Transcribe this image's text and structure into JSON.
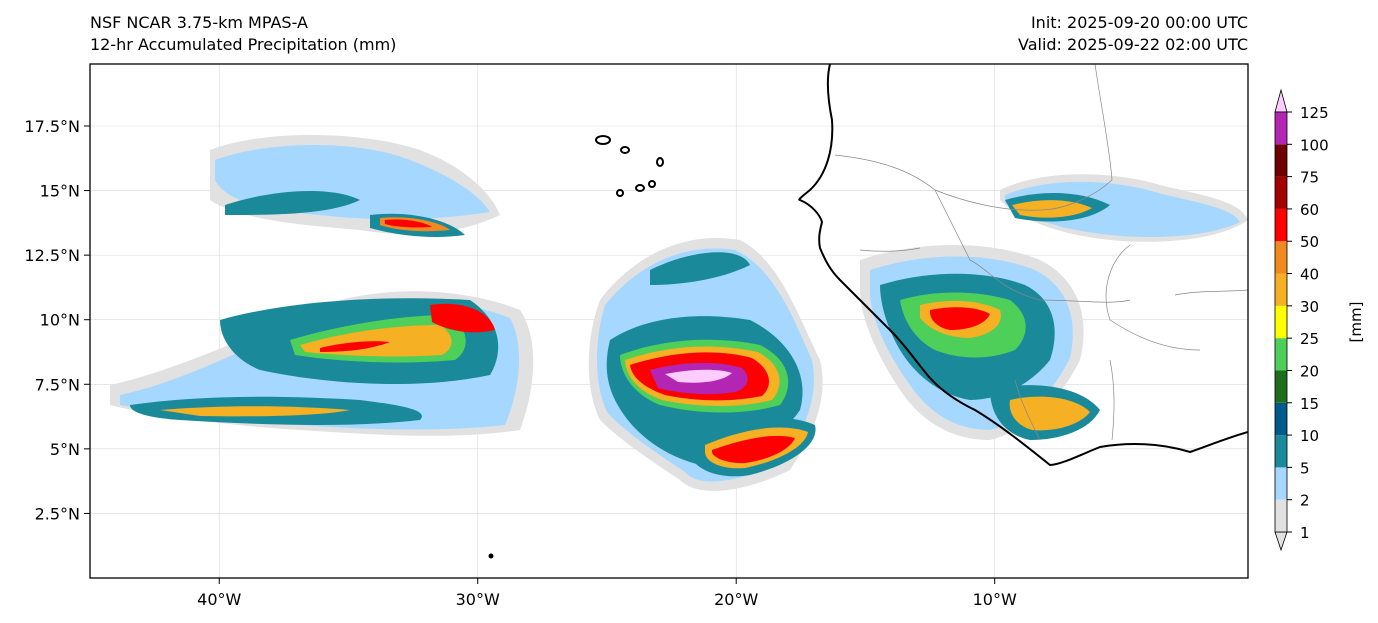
{
  "title": {
    "model": "NSF NCAR 3.75-km MPAS-A",
    "field": "12-hr Accumulated Precipitation (mm)",
    "init": "Init: 2025-09-20 00:00 UTC",
    "valid": "Valid: 2025-09-22 02:00 UTC"
  },
  "map": {
    "lon_range": [
      -45,
      -0.2
    ],
    "lat_range": [
      0,
      19.9
    ],
    "lon_ticks": [
      {
        "value": -40,
        "label": "40°W"
      },
      {
        "value": -30,
        "label": "30°W"
      },
      {
        "value": -20,
        "label": "20°W"
      },
      {
        "value": -10,
        "label": "10°W"
      }
    ],
    "lat_ticks": [
      {
        "value": 2.5,
        "label": "2.5°N"
      },
      {
        "value": 5,
        "label": "5°N"
      },
      {
        "value": 7.5,
        "label": "7.5°N"
      },
      {
        "value": 10,
        "label": "10°N"
      },
      {
        "value": 12.5,
        "label": "12.5°N"
      },
      {
        "value": 15,
        "label": "15°N"
      },
      {
        "value": 17.5,
        "label": "17.5°N"
      }
    ],
    "gridlines": true
  },
  "colorbar": {
    "unit_label": "[mm]",
    "levels": [
      "1",
      "2",
      "5",
      "10",
      "15",
      "20",
      "25",
      "30",
      "40",
      "50",
      "60",
      "75",
      "100",
      "125"
    ],
    "colors": [
      "#e1e1e1",
      "#a6d8ff",
      "#1a8a9a",
      "#005a8c",
      "#1e6e1e",
      "#4ecf5a",
      "#ffff00",
      "#f5b023",
      "#f08a20",
      "#ff0000",
      "#a00000",
      "#6e0000",
      "#b326b3",
      "#ffccff"
    ],
    "extend": "both"
  }
}
